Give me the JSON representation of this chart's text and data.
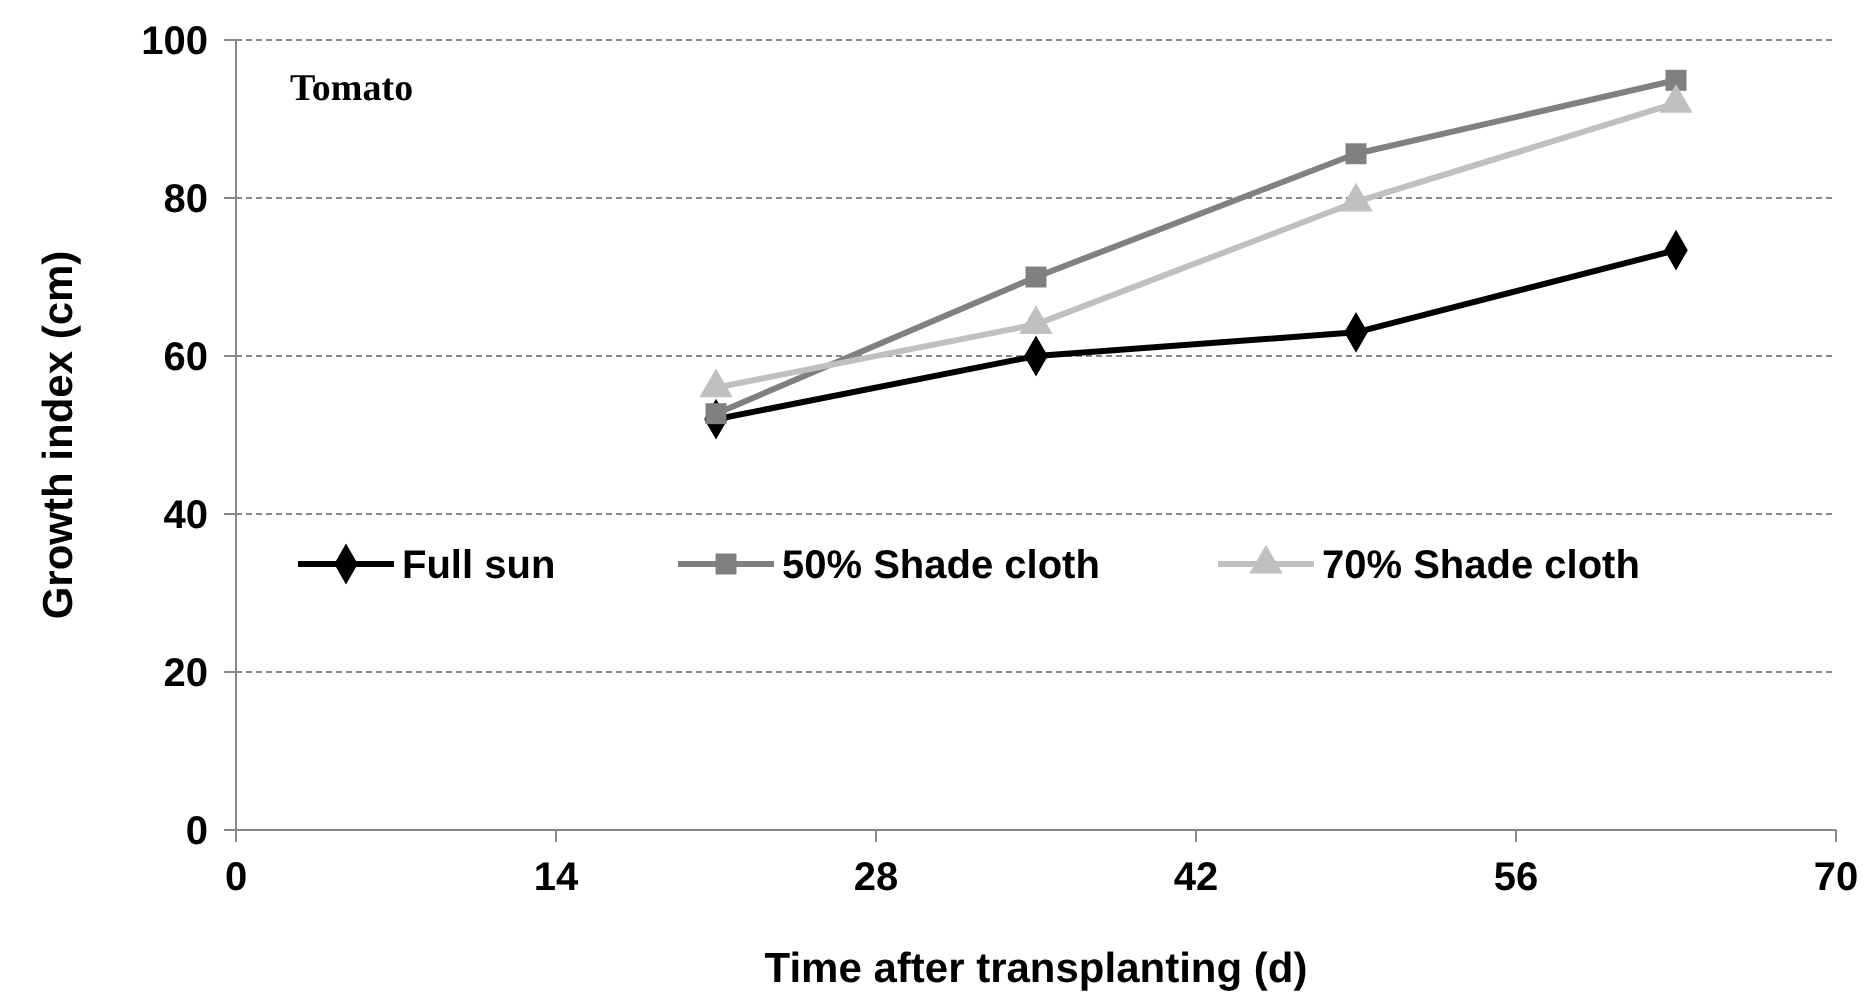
{
  "chart_data": {
    "type": "line",
    "xlabel": "Time after transplanting (d)",
    "ylabel": "Growth index (cm)",
    "annotations": [
      "Tomato"
    ],
    "x": [
      21,
      35,
      49,
      63
    ],
    "series": [
      {
        "name": "Full sun",
        "color": "#000000",
        "marker": "diamond",
        "values": [
          52,
          60,
          63,
          73.4
        ]
      },
      {
        "name": "50% Shade cloth",
        "color": "#808080",
        "marker": "square",
        "values": [
          52.7,
          70,
          85.6,
          94.9
        ]
      },
      {
        "name": "70% Shade cloth",
        "color": "#c0c0c0",
        "marker": "triangle",
        "values": [
          56,
          64,
          79.5,
          92
        ]
      }
    ],
    "xlim": [
      0,
      70
    ],
    "xticks": [
      0,
      14,
      28,
      42,
      56,
      70
    ],
    "ylim": [
      0,
      100
    ],
    "yticks": [
      0,
      20,
      40,
      60,
      80,
      100
    ],
    "grid": "y",
    "legend": "center",
    "line_style": "solid"
  }
}
